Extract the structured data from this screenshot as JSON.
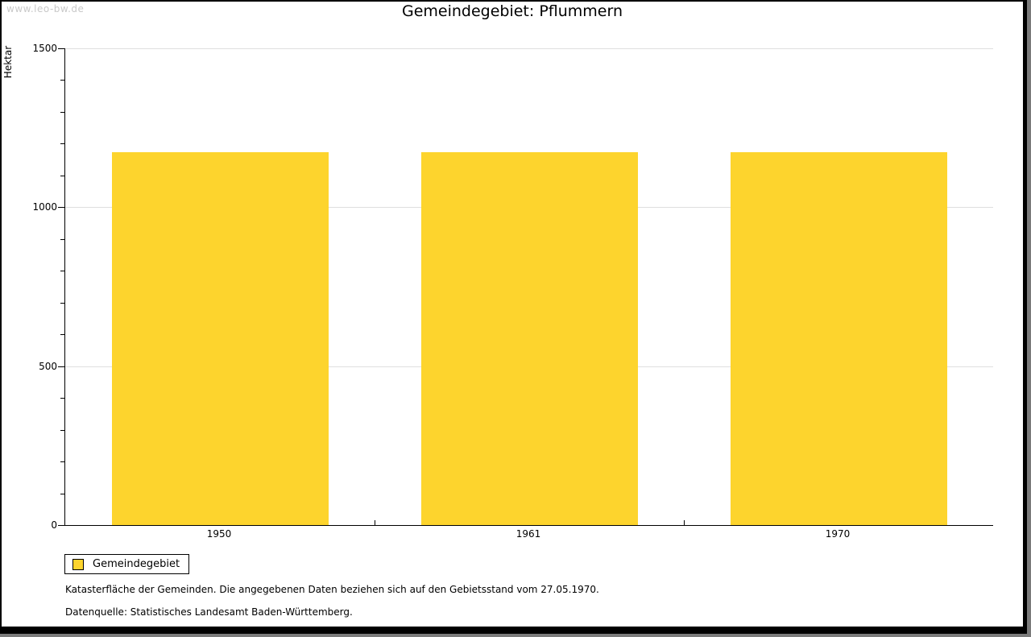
{
  "watermark": "www.leo-bw.de",
  "title": "Gemeindegebiet: Pflummern",
  "legend": {
    "label": "Gemeindegebiet"
  },
  "footnotes": [
    "Katasterfläche der Gemeinden. Die angegebenen Daten beziehen sich auf den Gebietsstand vom 27.05.1970.",
    "Datenquelle: Statistisches Landesamt Baden-Württemberg."
  ],
  "colors": {
    "bar": "#FDD42D",
    "grid": "#DFDFDF",
    "axis": "#000000",
    "watermark": "#C9C9C9"
  },
  "chart_data": {
    "type": "bar",
    "title": "Gemeindegebiet: Pflummern",
    "categories": [
      "1950",
      "1961",
      "1970"
    ],
    "series": [
      {
        "name": "Gemeindegebiet",
        "values": [
          1172,
          1172,
          1172
        ]
      }
    ],
    "xlabel": "",
    "ylabel": "Hektar",
    "ylim": [
      0,
      1500
    ],
    "yticks": [
      0,
      500,
      1000,
      1500
    ],
    "ytick_minor_step": 100,
    "grid": true,
    "bar_width_fraction": 0.7,
    "legend_position": "bottom-left",
    "bar_color": "#FDD42D"
  }
}
